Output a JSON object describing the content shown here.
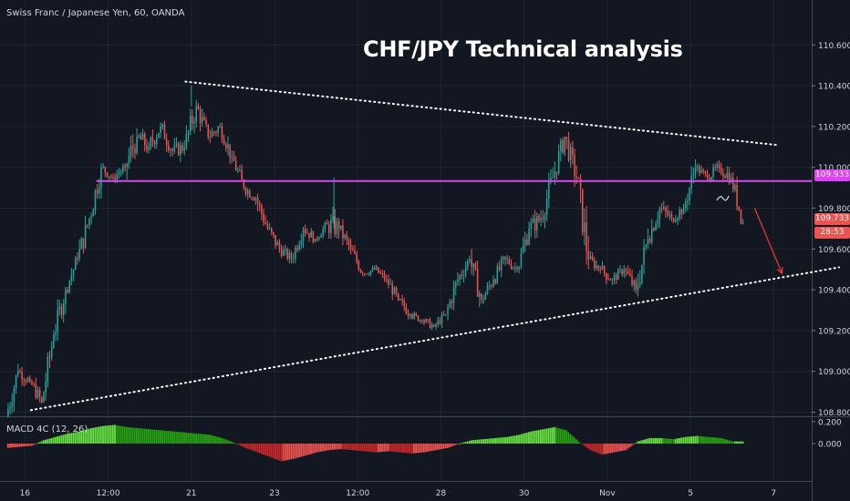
{
  "symbol_info": "Swiss Franc / Japanese Yen, 60, OANDA",
  "chart_data": {
    "type": "candlestick",
    "title": "CHF/JPY Technical analysis",
    "price_axis": {
      "ticks": [
        108.8,
        109.0,
        109.2,
        109.4,
        109.6,
        109.8,
        110.0,
        110.2,
        110.4,
        110.6
      ],
      "tick_labels": [
        "108.800",
        "109.000",
        "109.200",
        "109.400",
        "109.600",
        "109.800",
        "110.000",
        "110.200",
        "110.400",
        "110.600"
      ],
      "range": [
        108.78,
        110.82
      ]
    },
    "time_axis": {
      "labels": [
        "16",
        "12:00",
        "21",
        "23",
        "12:00",
        "28",
        "30",
        "Nov",
        "5",
        "7"
      ],
      "label_index": [
        1,
        8,
        15,
        22,
        29,
        36,
        43,
        50,
        57,
        64
      ],
      "range_index": [
        -1.1,
        67.2
      ]
    },
    "candles": [
      [
        108.78,
        109.05,
        108.75,
        109.0
      ],
      [
        109.0,
        109.06,
        108.9,
        108.95
      ],
      [
        108.95,
        109.02,
        108.82,
        108.85
      ],
      [
        108.85,
        109.2,
        108.84,
        109.18
      ],
      [
        109.18,
        109.45,
        109.15,
        109.4
      ],
      [
        109.4,
        109.6,
        109.38,
        109.55
      ],
      [
        109.55,
        109.8,
        109.5,
        109.75
      ],
      [
        109.75,
        110.05,
        109.72,
        110.0
      ],
      [
        110.0,
        110.05,
        109.9,
        109.95
      ],
      [
        109.95,
        110.02,
        109.88,
        110.0
      ],
      [
        110.0,
        110.2,
        109.85,
        110.15
      ],
      [
        110.15,
        110.3,
        110.05,
        110.1
      ],
      [
        110.1,
        110.25,
        110.0,
        110.2
      ],
      [
        110.2,
        110.28,
        110.05,
        110.08
      ],
      [
        110.08,
        110.15,
        109.95,
        110.1
      ],
      [
        110.1,
        110.4,
        110.08,
        110.3
      ],
      [
        110.3,
        110.35,
        110.1,
        110.15
      ],
      [
        110.15,
        110.25,
        110.05,
        110.2
      ],
      [
        110.2,
        110.22,
        110.0,
        110.05
      ],
      [
        110.05,
        110.08,
        109.85,
        109.9
      ],
      [
        109.9,
        109.95,
        109.8,
        109.85
      ],
      [
        109.85,
        109.88,
        109.65,
        109.7
      ],
      [
        109.7,
        109.75,
        109.55,
        109.6
      ],
      [
        109.6,
        109.65,
        109.5,
        109.55
      ],
      [
        109.55,
        109.72,
        109.52,
        109.7
      ],
      [
        109.7,
        109.75,
        109.6,
        109.65
      ],
      [
        109.65,
        109.75,
        109.62,
        109.72
      ],
      [
        109.72,
        109.95,
        109.65,
        109.7
      ],
      [
        109.7,
        109.75,
        109.55,
        109.6
      ],
      [
        109.6,
        109.62,
        109.45,
        109.48
      ],
      [
        109.48,
        109.52,
        109.42,
        109.5
      ],
      [
        109.5,
        109.55,
        109.42,
        109.45
      ],
      [
        109.45,
        109.48,
        109.32,
        109.35
      ],
      [
        109.35,
        109.4,
        109.25,
        109.28
      ],
      [
        109.28,
        109.32,
        109.22,
        109.25
      ],
      [
        109.25,
        109.3,
        109.18,
        109.22
      ],
      [
        109.22,
        109.3,
        109.18,
        109.28
      ],
      [
        109.28,
        109.5,
        109.25,
        109.45
      ],
      [
        109.45,
        109.6,
        109.4,
        109.55
      ],
      [
        109.55,
        109.6,
        109.3,
        109.35
      ],
      [
        109.35,
        109.48,
        109.28,
        109.45
      ],
      [
        109.45,
        109.6,
        109.4,
        109.55
      ],
      [
        109.55,
        109.6,
        109.45,
        109.5
      ],
      [
        109.5,
        109.75,
        109.48,
        109.7
      ],
      [
        109.7,
        109.8,
        109.55,
        109.75
      ],
      [
        109.75,
        110.0,
        109.7,
        109.95
      ],
      [
        109.95,
        110.2,
        109.9,
        110.15
      ],
      [
        110.15,
        110.2,
        109.9,
        109.95
      ],
      [
        109.95,
        110.0,
        109.5,
        109.55
      ],
      [
        109.55,
        109.6,
        109.45,
        109.5
      ],
      [
        109.5,
        109.55,
        109.38,
        109.45
      ],
      [
        109.45,
        109.55,
        109.42,
        109.5
      ],
      [
        109.5,
        109.55,
        109.35,
        109.4
      ],
      [
        109.4,
        109.7,
        109.33,
        109.65
      ],
      [
        109.65,
        109.85,
        109.6,
        109.8
      ],
      [
        109.8,
        109.88,
        109.7,
        109.75
      ],
      [
        109.75,
        109.85,
        109.68,
        109.8
      ],
      [
        109.8,
        110.05,
        109.78,
        110.0
      ],
      [
        110.0,
        110.05,
        109.92,
        109.95
      ],
      [
        109.95,
        110.05,
        109.9,
        110.0
      ],
      [
        110.0,
        110.1,
        109.9,
        109.95
      ],
      [
        109.95,
        109.98,
        109.72,
        109.73
      ]
    ],
    "horizontal_level": 109.933,
    "last_price": 109.733,
    "level_label": "109.933",
    "last_price_label": "109.733",
    "countdown_label": "28:53",
    "upper_trendline": [
      [
        14.5,
        110.42
      ],
      [
        64.2,
        110.11
      ]
    ],
    "lower_trendline": [
      [
        1.5,
        108.81
      ],
      [
        69.5,
        109.51
      ]
    ],
    "projection_arrow": [
      [
        62.4,
        109.8
      ],
      [
        64.7,
        109.48
      ]
    ],
    "macd": {
      "label": "MACD 4C (12, 26)",
      "ticks": [
        0.2,
        0.0
      ],
      "tick_labels": [
        "0.200",
        "0.000"
      ],
      "range": [
        -0.34,
        0.24
      ],
      "values": [
        -0.04,
        -0.03,
        -0.02,
        0.03,
        0.06,
        0.09,
        0.11,
        0.14,
        0.16,
        0.17,
        0.15,
        0.14,
        0.13,
        0.12,
        0.11,
        0.1,
        0.09,
        0.08,
        0.05,
        0.01,
        -0.04,
        -0.08,
        -0.12,
        -0.16,
        -0.14,
        -0.11,
        -0.08,
        -0.06,
        -0.05,
        -0.06,
        -0.07,
        -0.08,
        -0.07,
        -0.08,
        -0.09,
        -0.08,
        -0.06,
        -0.04,
        0.0,
        0.03,
        0.04,
        0.05,
        0.06,
        0.08,
        0.11,
        0.13,
        0.15,
        0.12,
        0.02,
        -0.06,
        -0.1,
        -0.08,
        -0.06,
        0.02,
        0.05,
        0.05,
        0.04,
        0.06,
        0.07,
        0.06,
        0.05,
        0.02
      ],
      "colors": {
        "up_strong": "#26a212",
        "up_weak": "#65e23f",
        "down_strong": "#c62828",
        "down_weak": "#ef5350"
      }
    },
    "colors": {
      "background": "#131722",
      "up": "#26a69a",
      "down": "#ef5350",
      "level": "#e040fb",
      "trendline": "#ffffff",
      "arrow": "#e53935",
      "grid": "#ffffff"
    }
  }
}
